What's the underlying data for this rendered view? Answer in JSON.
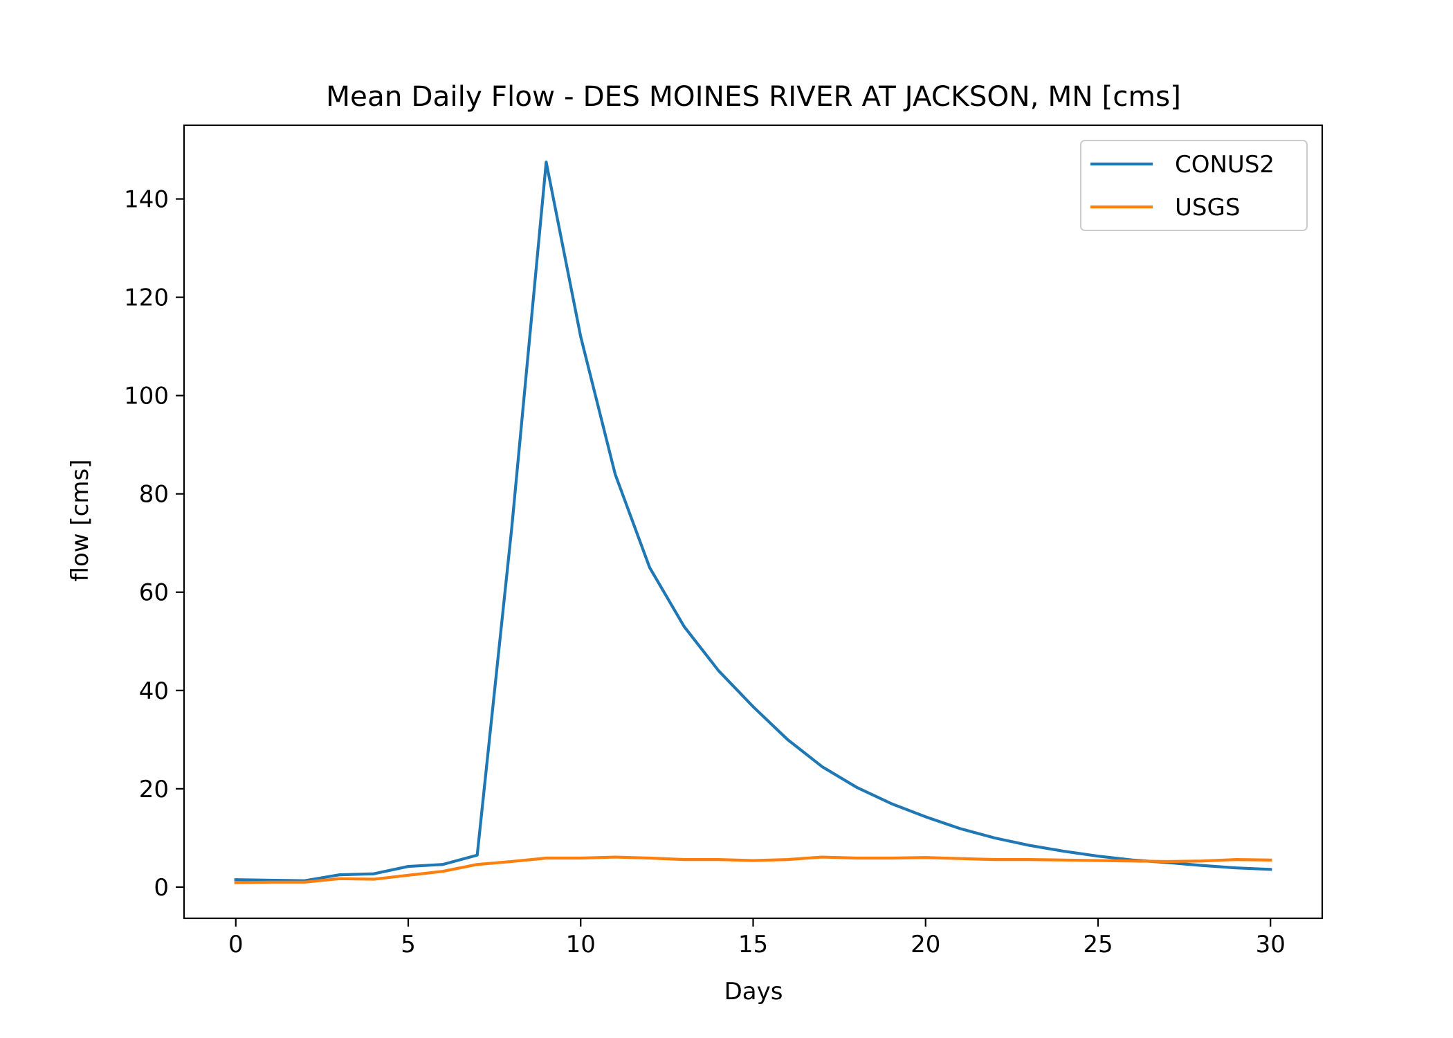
{
  "chart_data": {
    "type": "line",
    "title": "Mean Daily Flow - DES MOINES RIVER AT JACKSON, MN [cms]",
    "xlabel": "Days",
    "ylabel": "flow [cms]",
    "xlim": [
      -1.5,
      31.5
    ],
    "ylim": [
      -6.35,
      155.0
    ],
    "xticks": [
      0,
      5,
      10,
      15,
      20,
      25,
      30
    ],
    "yticks": [
      0,
      20,
      40,
      60,
      80,
      100,
      120,
      140
    ],
    "grid": false,
    "legend_position": "top-right",
    "x": [
      0,
      1,
      2,
      3,
      4,
      5,
      6,
      7,
      8,
      9,
      10,
      11,
      12,
      13,
      14,
      15,
      16,
      17,
      18,
      19,
      20,
      21,
      22,
      23,
      24,
      25,
      26,
      27,
      28,
      29,
      30
    ],
    "series": [
      {
        "name": "CONUS2",
        "color": "#1f77b4",
        "values": [
          1.5,
          1.4,
          1.3,
          2.5,
          2.7,
          4.2,
          4.6,
          6.5,
          73.0,
          147.5,
          112.0,
          84.0,
          65.0,
          53.0,
          44.0,
          36.7,
          30.0,
          24.5,
          20.3,
          17.0,
          14.3,
          11.9,
          10.0,
          8.5,
          7.3,
          6.3,
          5.5,
          5.0,
          4.4,
          3.9,
          3.6
        ]
      },
      {
        "name": "USGS",
        "color": "#ff7f0e",
        "values": [
          0.9,
          1.0,
          1.0,
          1.7,
          1.6,
          2.4,
          3.2,
          4.6,
          5.2,
          5.9,
          5.9,
          6.1,
          5.9,
          5.6,
          5.6,
          5.4,
          5.6,
          6.1,
          5.9,
          5.9,
          6.0,
          5.8,
          5.6,
          5.6,
          5.5,
          5.4,
          5.3,
          5.2,
          5.3,
          5.6,
          5.5
        ]
      }
    ]
  }
}
